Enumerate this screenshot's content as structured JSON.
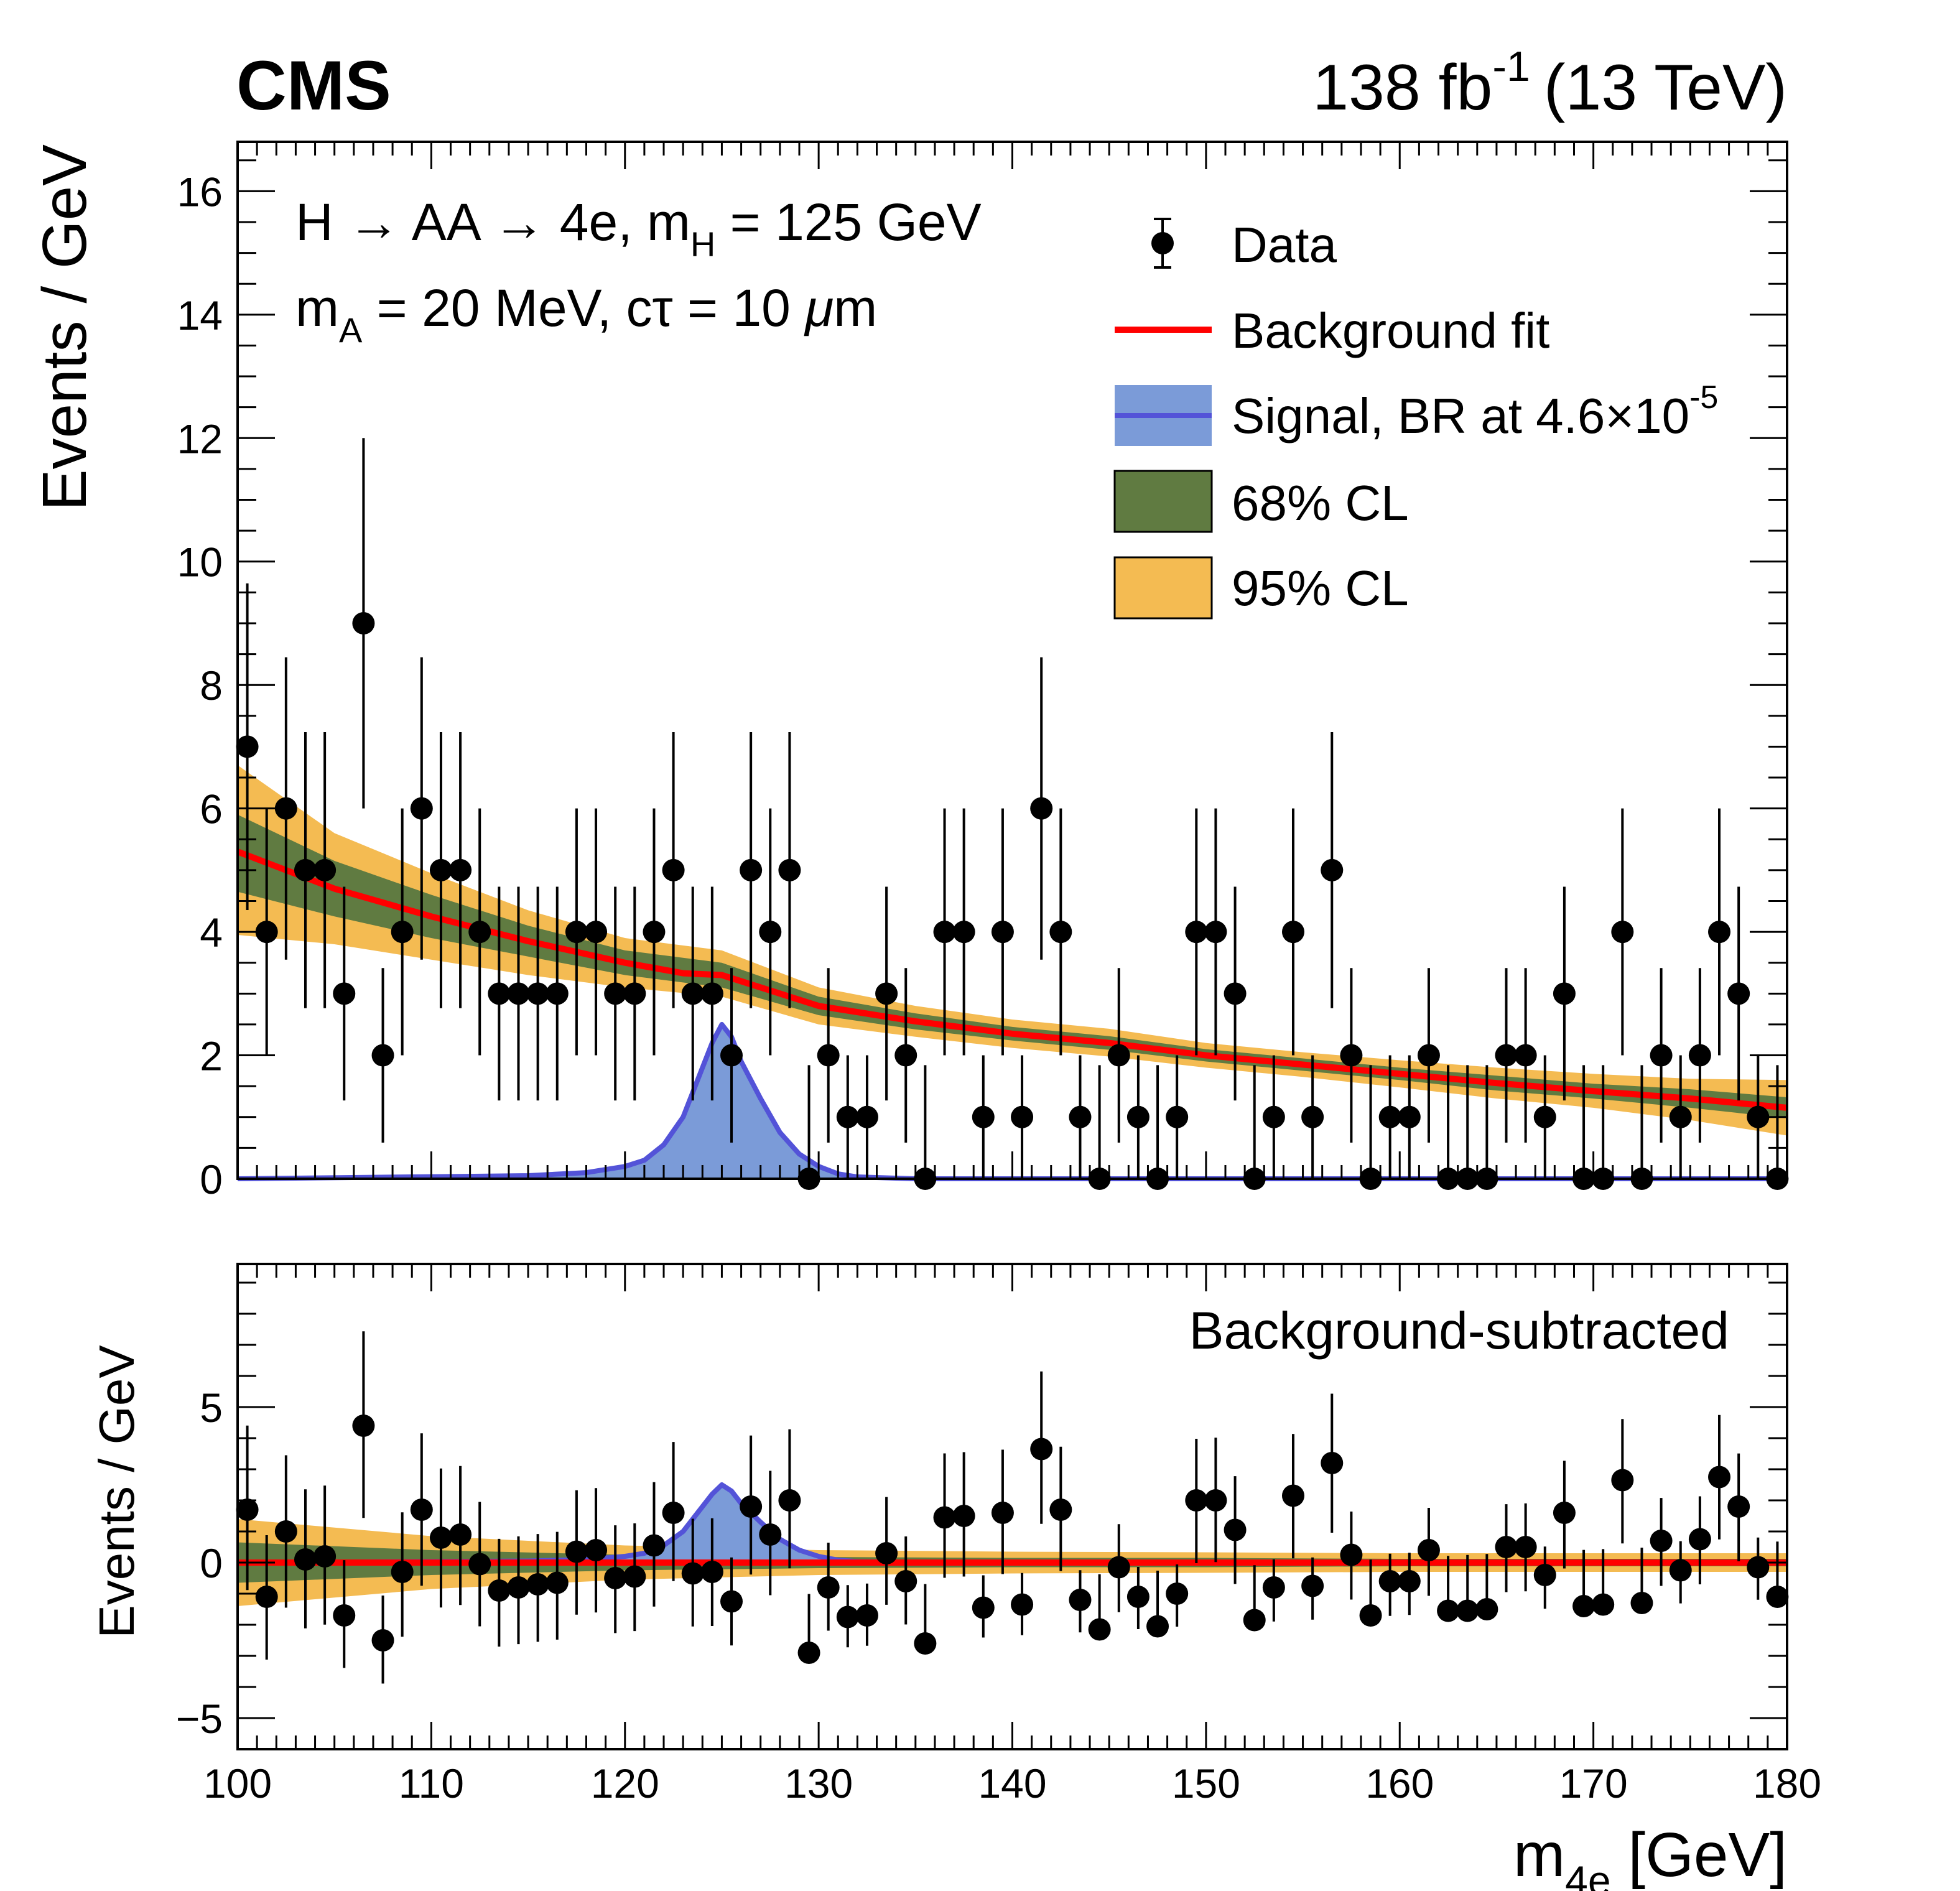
{
  "header": {
    "experiment": "CMS",
    "lumi_value": "138 fb",
    "lumi_exp": "-1",
    "energy": "(13 TeV)"
  },
  "annotation": {
    "line1_prefix": "H → AA → 4e, m",
    "line1_sub": "H",
    "line1_suffix": " = 125 GeV",
    "line2_prefix": "m",
    "line2_sub": "A",
    "line2_suffix": " = 20 MeV, cτ = 10 ",
    "line2_mu": "μ",
    "line2_unit": "m"
  },
  "legend": {
    "data": "Data",
    "background": "Background fit",
    "signal_prefix": "Signal, BR at 4.6×10",
    "signal_exp": "-5",
    "cl68": "68% CL",
    "cl95": "95% CL"
  },
  "bottom_panel_label": "Background-subtracted",
  "colors": {
    "background_fit": "#ff0000",
    "signal_line": "#5353d8",
    "signal_fill": "#7b9bd8",
    "cl68": "#607b41",
    "cl95": "#f4bb52",
    "data": "#000000"
  },
  "chart_data": [
    {
      "type": "scatter",
      "panel": "top",
      "ylabel": "Events / GeV",
      "xlim": [
        100,
        180
      ],
      "ylim": [
        0,
        16.8
      ],
      "yticks": [
        0,
        2,
        4,
        6,
        8,
        10,
        12,
        14,
        16
      ],
      "series": [
        {
          "name": "Data",
          "x": [
            100.5,
            101.5,
            102.5,
            103.5,
            104.5,
            105.5,
            106.5,
            107.5,
            108.5,
            109.5,
            110.5,
            111.5,
            112.5,
            113.5,
            114.5,
            115.5,
            116.5,
            117.5,
            118.5,
            119.5,
            120.5,
            121.5,
            122.5,
            123.5,
            124.5,
            125.5,
            126.5,
            127.5,
            128.5,
            129.5,
            130.5,
            131.5,
            132.5,
            133.5,
            134.5,
            135.5,
            136.5,
            137.5,
            138.5,
            139.5,
            140.5,
            141.5,
            142.5,
            143.5,
            144.5,
            145.5,
            146.5,
            147.5,
            148.5,
            149.5,
            150.5,
            151.5,
            152.5,
            153.5,
            154.5,
            155.5,
            156.5,
            157.5,
            158.5,
            159.5,
            160.5,
            161.5,
            162.5,
            163.5,
            164.5,
            165.5,
            166.5,
            167.5,
            168.5,
            169.5,
            170.5,
            171.5,
            172.5,
            173.5,
            174.5,
            175.5,
            176.5,
            177.5,
            178.5,
            179.5
          ],
          "y": [
            7,
            4,
            6,
            5,
            5,
            3,
            9,
            2,
            4,
            6,
            5,
            5,
            4,
            3,
            3,
            3,
            3,
            4,
            4,
            3,
            3,
            4,
            5,
            3,
            3,
            2,
            5,
            4,
            5,
            0,
            2,
            1,
            1,
            3,
            2,
            0,
            4,
            4,
            1,
            4,
            1,
            6,
            4,
            1,
            0,
            2,
            1,
            0,
            1,
            4,
            4,
            3,
            0,
            1,
            4,
            1,
            5,
            2,
            0,
            1,
            1,
            2,
            0,
            0,
            0,
            2,
            2,
            1,
            3,
            0,
            0,
            4,
            0,
            2,
            1,
            2,
            4,
            3,
            1,
            0
          ]
        },
        {
          "name": "Background fit",
          "x": [
            100,
            105,
            110,
            115,
            120,
            123,
            125,
            127,
            130,
            135,
            140,
            145,
            150,
            155,
            160,
            165,
            170,
            175,
            180
          ],
          "y": [
            5.3,
            4.7,
            4.25,
            3.85,
            3.5,
            3.33,
            3.3,
            3.1,
            2.8,
            2.55,
            2.35,
            2.2,
            2.0,
            1.85,
            1.7,
            1.55,
            1.42,
            1.3,
            1.15
          ]
        },
        {
          "name": "Signal, BR at 4.6×10-5",
          "x": [
            100,
            115,
            118,
            120,
            121,
            122,
            123,
            124,
            124.5,
            125,
            125.5,
            126,
            127,
            128,
            129,
            130,
            131,
            132,
            135,
            140,
            180
          ],
          "y": [
            0,
            0.05,
            0.1,
            0.2,
            0.3,
            0.55,
            1.0,
            1.8,
            2.2,
            2.5,
            2.3,
            1.9,
            1.3,
            0.75,
            0.4,
            0.2,
            0.08,
            0.03,
            0,
            0,
            0
          ]
        },
        {
          "name": "68% CL",
          "x": [
            100,
            105,
            110,
            115,
            120,
            125,
            130,
            135,
            140,
            145,
            150,
            155,
            160,
            165,
            170,
            175,
            180
          ],
          "lower": [
            4.65,
            4.25,
            3.9,
            3.6,
            3.3,
            3.1,
            2.65,
            2.42,
            2.24,
            2.09,
            1.9,
            1.75,
            1.6,
            1.43,
            1.3,
            1.15,
            0.98
          ],
          "upper": [
            5.9,
            5.15,
            4.6,
            4.1,
            3.7,
            3.5,
            2.95,
            2.68,
            2.46,
            2.31,
            2.1,
            1.95,
            1.8,
            1.67,
            1.54,
            1.45,
            1.32
          ]
        },
        {
          "name": "95% CL",
          "x": [
            100,
            105,
            110,
            115,
            120,
            125,
            130,
            135,
            140,
            145,
            150,
            155,
            160,
            165,
            170,
            175,
            180
          ],
          "lower": [
            3.95,
            3.8,
            3.55,
            3.3,
            3.1,
            2.95,
            2.5,
            2.3,
            2.12,
            1.98,
            1.8,
            1.65,
            1.48,
            1.3,
            1.15,
            0.95,
            0.7
          ],
          "upper": [
            6.7,
            5.6,
            4.95,
            4.35,
            3.9,
            3.7,
            3.1,
            2.8,
            2.58,
            2.43,
            2.2,
            2.05,
            1.92,
            1.8,
            1.7,
            1.62,
            1.6
          ]
        }
      ]
    },
    {
      "type": "scatter",
      "panel": "bottom",
      "xlabel": "m4e [GeV]",
      "ylabel": "Events / GeV",
      "xlim": [
        100,
        180
      ],
      "ylim": [
        -6,
        9.6
      ],
      "xticks": [
        100,
        110,
        120,
        130,
        140,
        150,
        160,
        170,
        180
      ],
      "yticks": [
        -5,
        0,
        5
      ],
      "series": [
        {
          "name": "Data",
          "x": [
            100.5,
            101.5,
            102.5,
            103.5,
            104.5,
            105.5,
            106.5,
            107.5,
            108.5,
            109.5,
            110.5,
            111.5,
            112.5,
            113.5,
            114.5,
            115.5,
            116.5,
            117.5,
            118.5,
            119.5,
            120.5,
            121.5,
            122.5,
            123.5,
            124.5,
            125.5,
            126.5,
            127.5,
            128.5,
            129.5,
            130.5,
            131.5,
            132.5,
            133.5,
            134.5,
            135.5,
            136.5,
            137.5,
            138.5,
            139.5,
            140.5,
            141.5,
            142.5,
            143.5,
            144.5,
            145.5,
            146.5,
            147.5,
            148.5,
            149.5,
            150.5,
            151.5,
            152.5,
            153.5,
            154.5,
            155.5,
            156.5,
            157.5,
            158.5,
            159.5,
            160.5,
            161.5,
            162.5,
            163.5,
            164.5,
            165.5,
            166.5,
            167.5,
            168.5,
            169.5,
            170.5,
            171.5,
            172.5,
            173.5,
            174.5,
            175.5,
            176.5,
            177.5,
            178.5,
            179.5
          ],
          "y": [
            1.7,
            -1.1,
            1.0,
            0.1,
            0.2,
            -1.7,
            4.4,
            -2.5,
            -0.3,
            1.7,
            0.8,
            0.9,
            -0.05,
            -0.9,
            -0.8,
            -0.7,
            -0.65,
            0.35,
            0.4,
            -0.5,
            -0.45,
            0.55,
            1.6,
            -0.35,
            -0.3,
            -1.25,
            1.8,
            0.9,
            2.0,
            -2.9,
            -0.8,
            -1.75,
            -1.7,
            0.3,
            -0.6,
            -2.6,
            1.45,
            1.5,
            -1.45,
            1.6,
            -1.35,
            3.65,
            1.7,
            -1.2,
            -2.15,
            -0.15,
            -1.1,
            -2.05,
            -1.0,
            2.0,
            2.0,
            1.05,
            -1.85,
            -0.8,
            2.15,
            -0.75,
            3.2,
            0.25,
            -1.7,
            -0.6,
            -0.6,
            0.4,
            -1.55,
            -1.55,
            -1.5,
            0.5,
            0.5,
            -0.4,
            1.6,
            -1.4,
            -1.35,
            2.65,
            -1.3,
            0.7,
            -0.25,
            0.75,
            2.75,
            1.8,
            -0.15,
            -1.1
          ]
        },
        {
          "name": "Background fit",
          "x": [
            100,
            180
          ],
          "y": [
            0,
            0
          ]
        },
        {
          "name": "Signal, BR at 4.6×10-5",
          "x": [
            100,
            115,
            118,
            120,
            121,
            122,
            123,
            124,
            124.5,
            125,
            125.5,
            126,
            127,
            128,
            129,
            130,
            131,
            132,
            135,
            140,
            180
          ],
          "y": [
            0,
            0.05,
            0.1,
            0.2,
            0.3,
            0.55,
            1.0,
            1.8,
            2.2,
            2.5,
            2.3,
            1.9,
            1.3,
            0.75,
            0.4,
            0.2,
            0.08,
            0.03,
            0,
            0,
            0
          ]
        },
        {
          "name": "68% CL",
          "x": [
            100,
            110,
            120,
            130,
            140,
            150,
            160,
            170,
            180
          ],
          "lower": [
            -0.65,
            -0.4,
            -0.25,
            -0.18,
            -0.15,
            -0.15,
            -0.12,
            -0.12,
            -0.12
          ],
          "upper": [
            0.65,
            0.4,
            0.25,
            0.18,
            0.15,
            0.15,
            0.12,
            0.12,
            0.12
          ]
        },
        {
          "name": "95% CL",
          "x": [
            100,
            110,
            120,
            130,
            140,
            150,
            160,
            170,
            180
          ],
          "lower": [
            -1.4,
            -0.85,
            -0.55,
            -0.4,
            -0.35,
            -0.33,
            -0.3,
            -0.3,
            -0.3
          ],
          "upper": [
            1.4,
            0.85,
            0.55,
            0.4,
            0.35,
            0.33,
            0.3,
            0.3,
            0.3
          ]
        }
      ]
    }
  ]
}
